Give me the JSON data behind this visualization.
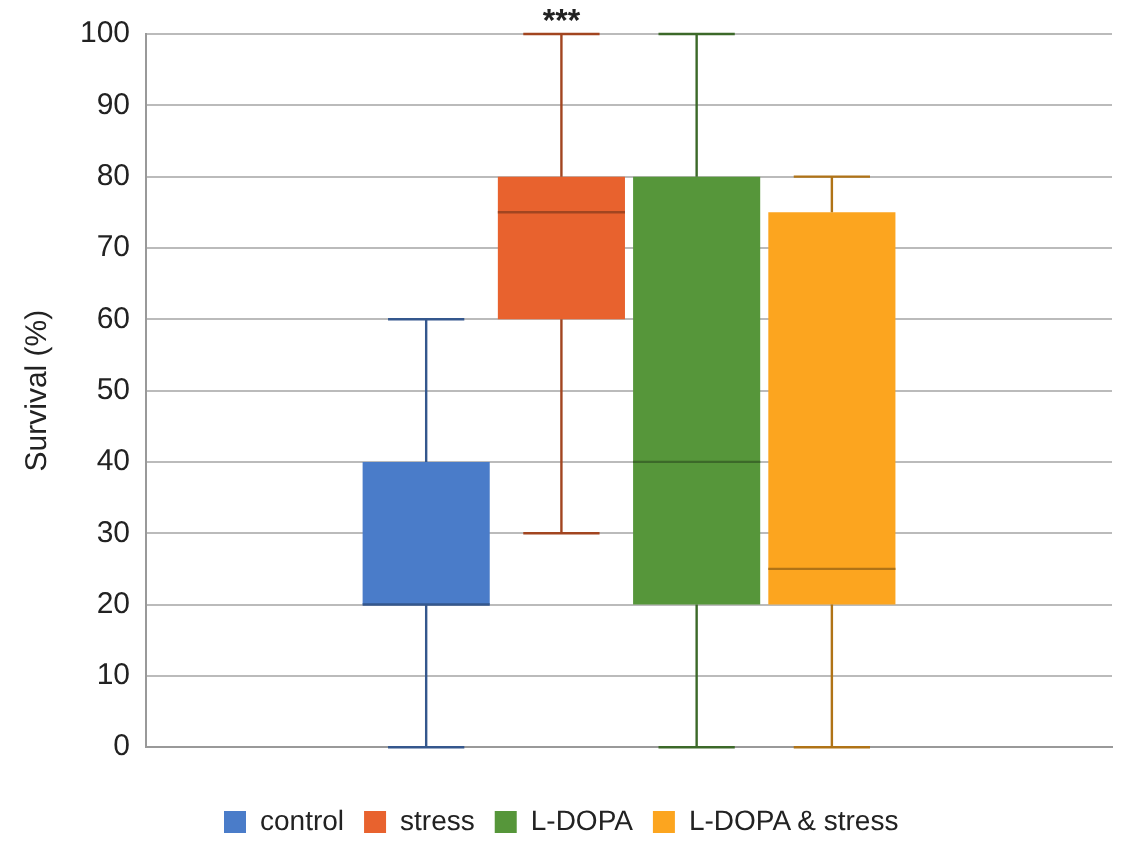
{
  "chart_data": {
    "type": "box",
    "ylabel": "Survival (%)",
    "categories": [
      null
    ],
    "series": [
      {
        "name": "control",
        "color": "#4a7cc9",
        "boxes": [
          {
            "low": 0,
            "q1": 20,
            "median": 20,
            "q3": 40,
            "high": 60
          }
        ]
      },
      {
        "name": "stress",
        "color": "#e8622e",
        "boxes": [
          {
            "low": 30,
            "q1": 60,
            "median": 75,
            "q3": 80,
            "high": 100
          }
        ]
      },
      {
        "name": "L-DOPA",
        "color": "#56963a",
        "boxes": [
          {
            "low": 0,
            "q1": 20,
            "median": 40,
            "q3": 80,
            "high": 100
          }
        ]
      },
      {
        "name": "L-DOPA & stress",
        "color": "#fca51f",
        "boxes": [
          {
            "low": 0,
            "q1": 20,
            "median": 25,
            "q3": 75,
            "high": 80
          }
        ]
      }
    ],
    "ylim": [
      0,
      100
    ],
    "yticks": [
      0,
      10,
      20,
      30,
      40,
      50,
      60,
      70,
      80,
      90,
      100
    ],
    "grid": "y",
    "legend": "bottom",
    "annotations": [
      {
        "text": "***",
        "y": 100
      }
    ]
  }
}
